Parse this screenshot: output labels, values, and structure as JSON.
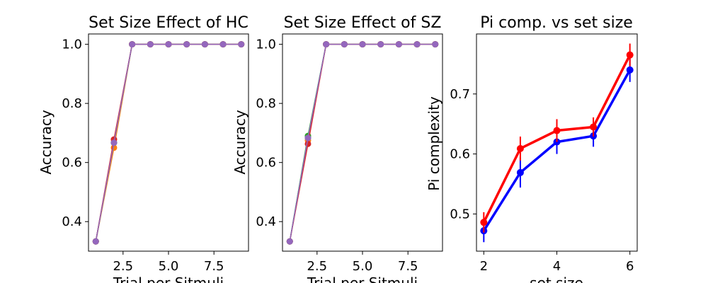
{
  "chart_data": [
    {
      "type": "line",
      "title": "Set Size Effect of HC",
      "xlabel": "Trial per Sitmuli",
      "ylabel": "Accuracy",
      "xlim": [
        0.6,
        9.4
      ],
      "ylim": [
        0.3,
        1.035
      ],
      "xticks": [
        2.5,
        5.0,
        7.5
      ],
      "xtick_labels": [
        "2.5",
        "5.0",
        "7.5"
      ],
      "yticks": [
        0.4,
        0.6,
        0.8,
        1.0
      ],
      "ytick_labels": [
        "0.4",
        "0.6",
        "0.8",
        "1.0"
      ],
      "grid": false,
      "x": [
        1,
        2,
        3,
        4,
        5,
        6,
        7,
        8,
        9
      ],
      "series": [
        {
          "color": "#1f77b4",
          "values": [
            0.333,
            0.667,
            1.0,
            1.0,
            1.0,
            1.0,
            1.0,
            1.0,
            1.0
          ]
        },
        {
          "color": "#ff7f0e",
          "values": [
            0.333,
            0.65,
            1.0,
            1.0,
            1.0,
            1.0,
            1.0,
            1.0,
            1.0
          ]
        },
        {
          "color": "#2ca02c",
          "values": [
            0.333,
            0.667,
            1.0,
            1.0,
            1.0,
            1.0,
            1.0,
            1.0,
            1.0
          ]
        },
        {
          "color": "#d62728",
          "values": [
            0.333,
            0.678,
            1.0,
            1.0,
            1.0,
            1.0,
            1.0,
            1.0,
            1.0
          ]
        },
        {
          "color": "#9467bd",
          "values": [
            0.333,
            0.667,
            1.0,
            1.0,
            1.0,
            1.0,
            1.0,
            1.0,
            1.0
          ]
        }
      ]
    },
    {
      "type": "line",
      "title": "Set Size Effect of SZ",
      "xlabel": "Trial per Sitmuli",
      "ylabel": "Accuracy",
      "xlim": [
        0.6,
        9.4
      ],
      "ylim": [
        0.3,
        1.035
      ],
      "xticks": [
        2.5,
        5.0,
        7.5
      ],
      "xtick_labels": [
        "2.5",
        "5.0",
        "7.5"
      ],
      "yticks": [
        0.4,
        0.6,
        0.8,
        1.0
      ],
      "ytick_labels": [
        "0.4",
        "0.6",
        "0.8",
        "1.0"
      ],
      "grid": false,
      "x": [
        1,
        2,
        3,
        4,
        5,
        6,
        7,
        8,
        9
      ],
      "series": [
        {
          "color": "#1f77b4",
          "values": [
            0.333,
            0.683,
            1.0,
            1.0,
            1.0,
            1.0,
            1.0,
            1.0,
            1.0
          ]
        },
        {
          "color": "#ff7f0e",
          "values": [
            0.333,
            0.675,
            1.0,
            1.0,
            1.0,
            1.0,
            1.0,
            1.0,
            1.0
          ]
        },
        {
          "color": "#2ca02c",
          "values": [
            0.333,
            0.69,
            1.0,
            1.0,
            1.0,
            1.0,
            1.0,
            1.0,
            1.0
          ]
        },
        {
          "color": "#d62728",
          "values": [
            0.333,
            0.663,
            1.0,
            1.0,
            1.0,
            1.0,
            1.0,
            1.0,
            1.0
          ]
        },
        {
          "color": "#9467bd",
          "values": [
            0.333,
            0.683,
            1.0,
            1.0,
            1.0,
            1.0,
            1.0,
            1.0,
            1.0
          ]
        }
      ]
    },
    {
      "type": "line",
      "title": "Pi comp. vs set size",
      "xlabel": "set size",
      "ylabel": "Pi complexity",
      "xlim": [
        1.8,
        6.2
      ],
      "ylim": [
        0.438,
        0.8
      ],
      "xticks": [
        2,
        4,
        6
      ],
      "xtick_labels": [
        "2",
        "4",
        "6"
      ],
      "yticks": [
        0.5,
        0.6,
        0.7
      ],
      "ytick_labels": [
        "0.5",
        "0.6",
        "0.7"
      ],
      "grid": false,
      "x": [
        2,
        3,
        4,
        5,
        6
      ],
      "series": [
        {
          "color": "#0000ff",
          "values": [
            0.472,
            0.569,
            0.62,
            0.63,
            0.74
          ],
          "err": [
            0.019,
            0.025,
            0.02,
            0.018,
            0.02
          ]
        },
        {
          "color": "#ff0000",
          "values": [
            0.486,
            0.609,
            0.639,
            0.645,
            0.765
          ],
          "err": [
            0.017,
            0.02,
            0.019,
            0.016,
            0.019
          ]
        }
      ]
    }
  ]
}
